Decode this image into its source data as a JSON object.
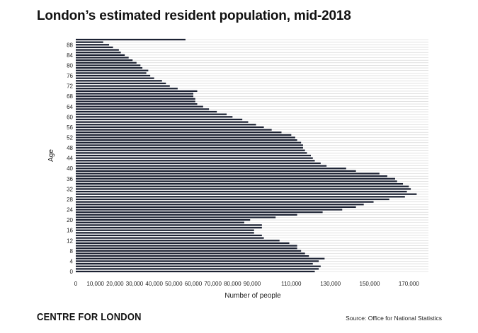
{
  "header": {
    "title": "London’s estimated resident population, mid-2018"
  },
  "footer": {
    "brand": "CENTRE FOR LONDON",
    "source": "Source: Office for National Statistics"
  },
  "colors": {
    "bar": "#1c2233",
    "grid": "#cfcfcf",
    "text": "#222222"
  },
  "chart_data": {
    "type": "bar",
    "orientation": "horizontal",
    "title": "London’s estimated resident population, mid-2018",
    "xlabel": "Number of people",
    "ylabel": "Age",
    "xlim": [
      0,
      180000
    ],
    "xticks": [
      0,
      10000,
      20000,
      30000,
      40000,
      50000,
      60000,
      70000,
      80000,
      90000,
      110000,
      130000,
      150000,
      170000
    ],
    "xtick_labels": [
      "0",
      "10,000",
      "20,000",
      "30,000",
      "40,000",
      "50,000",
      "60,000",
      "70,000",
      "80,000",
      "90,000",
      "110,000",
      "130,000",
      "150,000",
      "170,000"
    ],
    "yticks": [
      0,
      4,
      8,
      12,
      16,
      20,
      24,
      28,
      32,
      36,
      40,
      44,
      48,
      52,
      56,
      60,
      64,
      68,
      72,
      76,
      80,
      84,
      88
    ],
    "grid": true,
    "categories": [
      0,
      1,
      2,
      3,
      4,
      5,
      6,
      7,
      8,
      9,
      10,
      11,
      12,
      13,
      14,
      15,
      16,
      17,
      18,
      19,
      20,
      21,
      22,
      23,
      24,
      25,
      26,
      27,
      28,
      29,
      30,
      31,
      32,
      33,
      34,
      35,
      36,
      37,
      38,
      39,
      40,
      41,
      42,
      43,
      44,
      45,
      46,
      47,
      48,
      49,
      50,
      51,
      52,
      53,
      54,
      55,
      56,
      57,
      58,
      59,
      60,
      61,
      62,
      63,
      64,
      65,
      66,
      67,
      68,
      69,
      70,
      71,
      72,
      73,
      74,
      75,
      76,
      77,
      78,
      79,
      80,
      81,
      82,
      83,
      84,
      85,
      86,
      87,
      88,
      89,
      90
    ],
    "values": [
      122000,
      124000,
      125000,
      121000,
      124000,
      127000,
      119000,
      117000,
      115000,
      113000,
      113000,
      109000,
      104000,
      96000,
      95000,
      91000,
      91000,
      95000,
      95000,
      86000,
      89000,
      102000,
      113000,
      126000,
      136000,
      143000,
      147000,
      152000,
      160000,
      168000,
      174000,
      169000,
      171000,
      170000,
      167000,
      164000,
      163000,
      159000,
      155000,
      143000,
      138000,
      128000,
      125000,
      122000,
      121000,
      120000,
      118000,
      117000,
      116000,
      116000,
      115000,
      113000,
      112000,
      110000,
      105000,
      100000,
      96000,
      92000,
      88000,
      85000,
      80000,
      77000,
      72000,
      68000,
      65000,
      62000,
      61000,
      61000,
      60000,
      60000,
      62000,
      52000,
      48000,
      46000,
      44000,
      40000,
      38000,
      36000,
      37000,
      34000,
      33000,
      31000,
      29000,
      27000,
      25000,
      23000,
      22000,
      19000,
      17000,
      14000,
      56000
    ]
  }
}
